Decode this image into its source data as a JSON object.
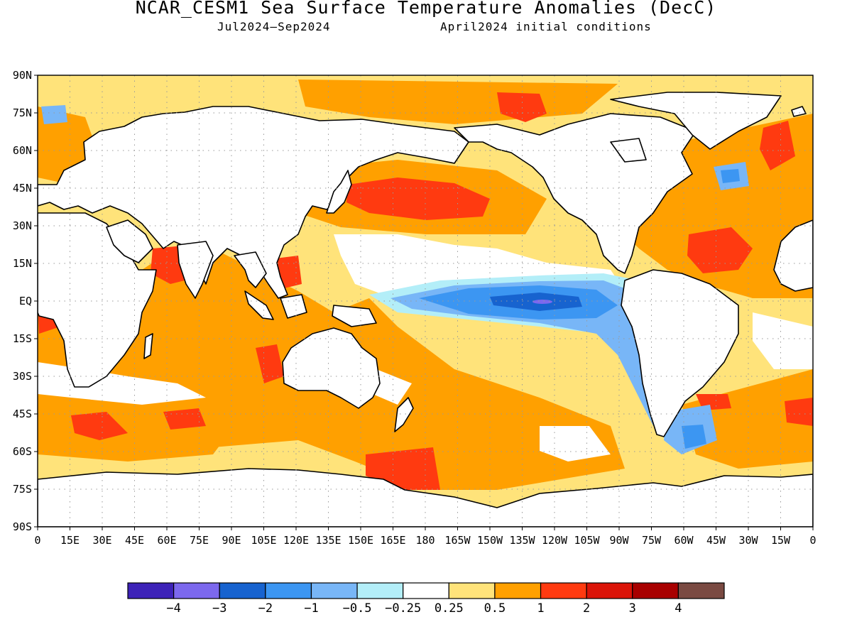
{
  "title": "NCAR_CESM1 Sea Surface Temperature Anomalies (DecC)",
  "period": "Jul2024–Sep2024",
  "initial_conditions": "April2024 initial conditions",
  "axes": {
    "lat_labels": [
      "90N",
      "75N",
      "60N",
      "45N",
      "30N",
      "15N",
      "EQ",
      "15S",
      "30S",
      "45S",
      "60S",
      "75S",
      "90S"
    ],
    "lon_labels": [
      "0",
      "15E",
      "30E",
      "45E",
      "60E",
      "75E",
      "90E",
      "105E",
      "120E",
      "135E",
      "150E",
      "165E",
      "180",
      "165W",
      "150W",
      "135W",
      "120W",
      "105W",
      "90W",
      "75W",
      "60W",
      "45W",
      "30W",
      "15W",
      "0"
    ]
  },
  "colorbar": {
    "colors": [
      "#3d22b8",
      "#7c68ee",
      "#1763cf",
      "#3c96f2",
      "#78b6f7",
      "#b3eef8",
      "#ffffff",
      "#ffe37a",
      "#ffa000",
      "#ff3a10",
      "#db1408",
      "#a80000",
      "#7a4a42"
    ],
    "labels": [
      "−4",
      "−3",
      "−2",
      "−1",
      "−0.5",
      "−0.25",
      "0.25",
      "0.5",
      "1",
      "2",
      "3",
      "4"
    ]
  },
  "colors": {
    "land": "#ffffff",
    "coast": "#000000",
    "grid": "#9a9a9a"
  }
}
